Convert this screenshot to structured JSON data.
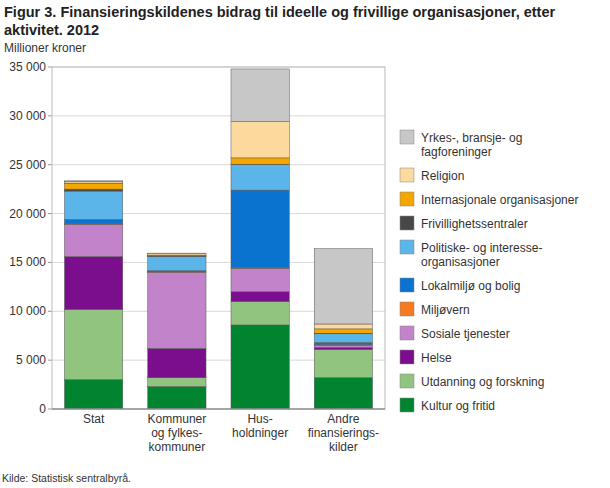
{
  "chart_data": {
    "type": "bar",
    "stacked": true,
    "grid": true,
    "legend": "right",
    "title": "Figur 3. Finansieringskildenes bidrag til ideelle og frivillige organisasjoner, etter aktivitet. 2012",
    "y_label": "Millioner kroner",
    "source": "Kilde: Statistisk sentralbyrå.",
    "categories": [
      "Stat",
      "Kommuner\nog fylkes-\nkommuner",
      "Hus-\nholdninger",
      "Andre\nfinansierings-\nkilder"
    ],
    "ylim": [
      0,
      35000
    ],
    "yticks": [
      0,
      {
        "value": 5000,
        "label": "5 000"
      },
      {
        "value": 10000,
        "label": "10 000"
      },
      {
        "value": 15000,
        "label": "15 000"
      },
      {
        "value": 20000,
        "label": "20 000"
      },
      {
        "value": 25000,
        "label": "25 000"
      },
      {
        "value": 30000,
        "label": "30 000"
      },
      {
        "value": 35000,
        "label": "35 000"
      }
    ],
    "series": [
      {
        "name": "Kultur og fritid",
        "color": "#00842f",
        "values": [
          3000,
          2300,
          8600,
          3200
        ]
      },
      {
        "name": "Utdanning og forskning",
        "color": "#90c47f",
        "values": [
          7200,
          900,
          2400,
          2900
        ]
      },
      {
        "name": "Helse",
        "color": "#7a0e8c",
        "values": [
          5400,
          3000,
          1000,
          200
        ]
      },
      {
        "name": "Sosiale tjenester",
        "color": "#c383ca",
        "values": [
          3300,
          7800,
          2400,
          200
        ]
      },
      {
        "name": "Miljøvern",
        "color": "#f57a22",
        "values": [
          100,
          50,
          100,
          100
        ]
      },
      {
        "name": "Lokalmiljø og bolig",
        "color": "#0a72cf",
        "values": [
          400,
          100,
          7900,
          200
        ]
      },
      {
        "name": "Politiske- og interesse-\norganisasjoner",
        "color": "#5cb5e8",
        "values": [
          2900,
          1450,
          2600,
          900
        ]
      },
      {
        "name": "Frivillighetssentraler",
        "color": "#474747",
        "values": [
          200,
          100,
          50,
          50
        ]
      },
      {
        "name": "Internasjonale organisasjoner",
        "color": "#f5a700",
        "values": [
          600,
          50,
          650,
          450
        ]
      },
      {
        "name": "Religion",
        "color": "#fcd99c",
        "values": [
          150,
          150,
          3700,
          500
        ]
      },
      {
        "name": "Yrkes-, bransje- og\nfagforeninger",
        "color": "#c7c7c7",
        "values": [
          100,
          50,
          5400,
          7700
        ]
      }
    ]
  }
}
